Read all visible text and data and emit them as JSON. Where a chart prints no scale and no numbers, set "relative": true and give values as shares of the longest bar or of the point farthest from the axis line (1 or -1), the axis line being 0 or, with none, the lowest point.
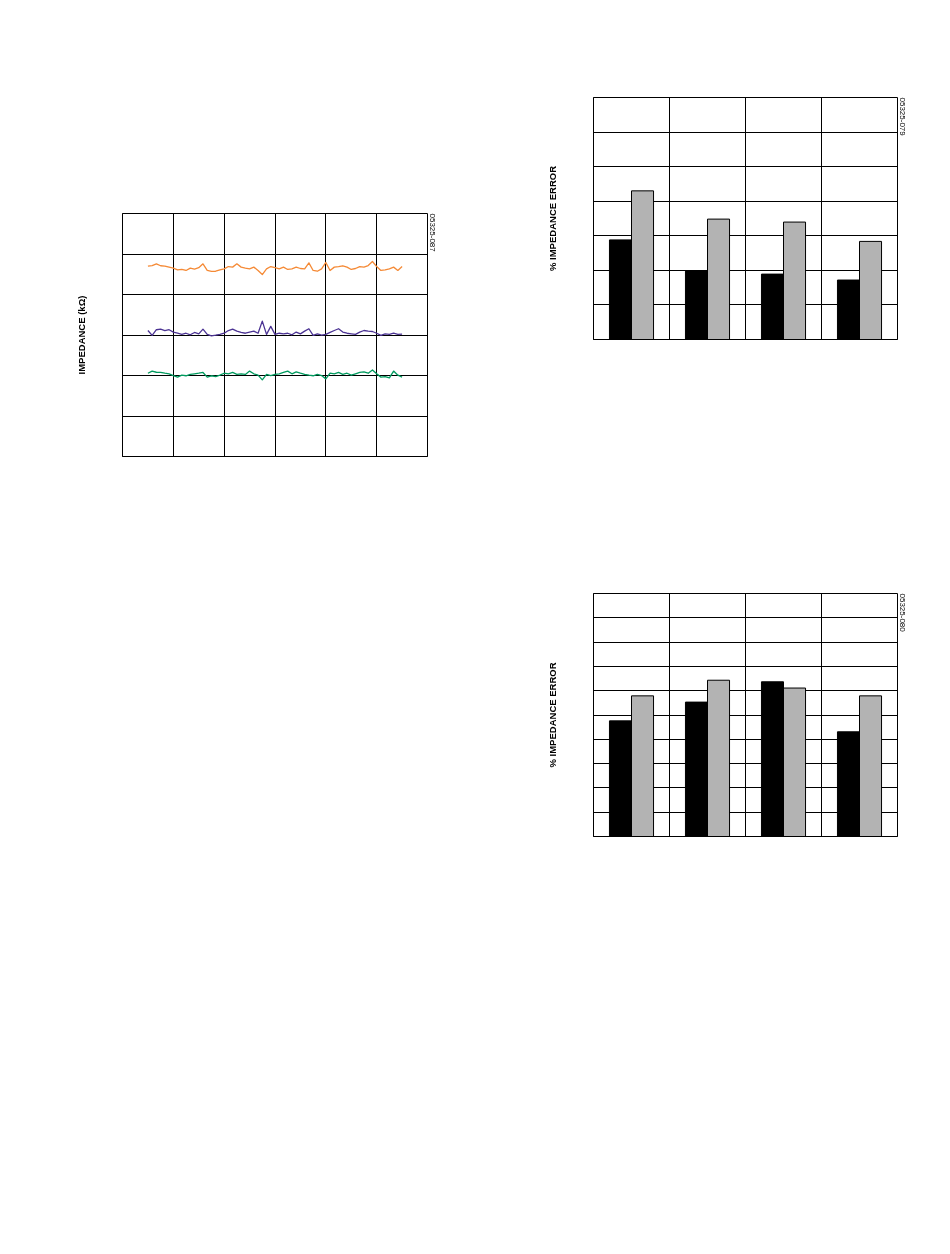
{
  "chart_data": [
    {
      "type": "line",
      "ylabel": "IMPEDANCE (kΩ)",
      "annotations": [
        "05325-087"
      ],
      "relative": true,
      "grid": true,
      "categories": [
        null,
        null,
        null,
        null,
        null,
        null,
        null,
        null,
        null,
        null,
        null,
        null,
        null,
        null,
        null,
        null,
        null,
        null,
        null,
        null,
        null,
        null,
        null,
        null,
        null,
        null,
        null,
        null,
        null,
        null,
        null,
        null,
        null,
        null,
        null,
        null,
        null,
        null,
        null,
        null,
        null,
        null,
        null,
        null,
        null,
        null,
        null,
        null,
        null,
        null,
        null,
        null,
        null,
        null,
        null,
        null,
        null,
        null,
        null,
        null,
        null
      ],
      "series": [
        {
          "color": "#f58a36",
          "values": [
            0.976,
            0.979,
            0.988,
            0.978,
            0.976,
            0.971,
            0.966,
            0.957,
            0.959,
            0.954,
            0.966,
            0.961,
            0.968,
            0.988,
            0.954,
            0.949,
            0.95,
            0.957,
            0.962,
            0.974,
            0.971,
            0.988,
            0.971,
            0.966,
            0.962,
            0.971,
            0.954,
            0.933,
            0.962,
            0.974,
            0.968,
            0.962,
            0.971,
            0.959,
            0.962,
            0.971,
            0.964,
            0.962,
            0.993,
            0.954,
            0.95,
            0.962,
            0.995,
            0.954,
            0.971,
            0.974,
            0.978,
            0.971,
            0.959,
            0.964,
            0.974,
            0.971,
            0.979,
            1,
            0.974,
            0.954,
            0.957,
            0.962,
            0.971,
            0.954,
            0.974
          ]
        },
        {
          "color": "#4b3393",
          "values": [
            0.646,
            0.621,
            0.65,
            0.653,
            0.646,
            0.65,
            0.638,
            0.632,
            0.626,
            0.632,
            0.624,
            0.636,
            0.629,
            0.653,
            0.626,
            0.619,
            0.622,
            0.626,
            0.632,
            0.646,
            0.653,
            0.643,
            0.636,
            0.632,
            0.638,
            0.643,
            0.632,
            0.694,
            0.626,
            0.667,
            0.626,
            0.632,
            0.629,
            0.632,
            0.624,
            0.638,
            0.629,
            0.643,
            0.655,
            0.621,
            0.629,
            0.622,
            0.626,
            0.636,
            0.646,
            0.655,
            0.638,
            0.632,
            0.629,
            0.626,
            0.638,
            0.646,
            0.643,
            0.641,
            0.632,
            0.621,
            0.629,
            0.626,
            0.632,
            0.626,
            0.627
          ]
        },
        {
          "color": "#009a5e",
          "values": [
            0.427,
            0.438,
            0.432,
            0.431,
            0.427,
            0.424,
            0.415,
            0.407,
            0.417,
            0.414,
            0.421,
            0.424,
            0.427,
            0.431,
            0.407,
            0.414,
            0.41,
            0.417,
            0.427,
            0.424,
            0.431,
            0.421,
            0.424,
            0.421,
            0.438,
            0.424,
            0.417,
            0.393,
            0.421,
            0.415,
            0.421,
            0.424,
            0.431,
            0.438,
            0.424,
            0.434,
            0.427,
            0.421,
            0.417,
            0.414,
            0.421,
            0.415,
            0.398,
            0.427,
            0.424,
            0.431,
            0.421,
            0.427,
            0.417,
            0.424,
            0.431,
            0.434,
            0.427,
            0.444,
            0.424,
            0.407,
            0.41,
            0.403,
            0.438,
            0.417,
            0.407
          ]
        }
      ]
    },
    {
      "type": "bar",
      "ylabel": "% IMPEDANCE ERROR",
      "annotations": [
        "05325-079"
      ],
      "relative": true,
      "grid": true,
      "categories": [
        null,
        null,
        null,
        null
      ],
      "series": [
        {
          "color": "#000000",
          "values": [
            0.67,
            0.46,
            0.44,
            0.4
          ]
        },
        {
          "color": "#b3b3b3",
          "values": [
            1,
            0.81,
            0.79,
            0.66
          ]
        }
      ]
    },
    {
      "type": "bar",
      "ylabel": "% IMPEDANCE ERROR",
      "annotations": [
        "05325-080"
      ],
      "relative": true,
      "grid": true,
      "categories": [
        null,
        null,
        null,
        null
      ],
      "series": [
        {
          "color": "#000000",
          "values": [
            0.74,
            0.86,
            0.99,
            0.67
          ]
        },
        {
          "color": "#b3b3b3",
          "values": [
            0.9,
            1,
            0.95,
            0.9
          ]
        }
      ]
    }
  ]
}
